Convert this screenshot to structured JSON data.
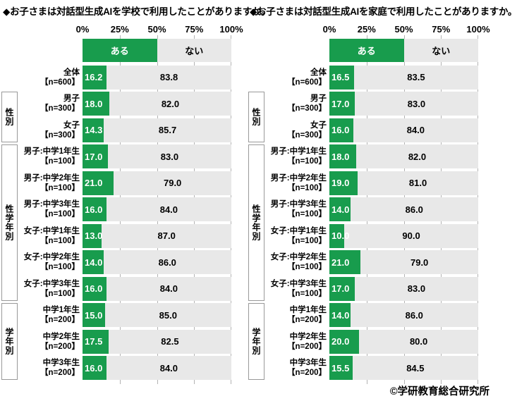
{
  "footer": "©学研教育総合研究所",
  "colors": {
    "bar_yes": "#189c4d",
    "bar_no": "#e8e8e8",
    "value_on_yes": "#ffffff",
    "value_on_no": "#000000",
    "gridline": "#b3b3b3",
    "group_box_border": "#999999"
  },
  "chart_data": [
    {
      "type": "bar",
      "orientation": "horizontal",
      "stacked": true,
      "title": "◆お子さまは対話型生成AIを学校で利用したことがありますか。",
      "x_ticks": [
        "0%",
        "25%",
        "50%",
        "75%",
        "100%"
      ],
      "xlim": [
        0,
        100
      ],
      "legend": [
        "ある",
        "ない"
      ],
      "legend_position": "top",
      "grid": "vertical ticks at 25/50/75/100 shown in row gaps",
      "groups": [
        {
          "label": "",
          "rows": [
            {
              "category": "全体",
              "n": "【n=600】",
              "yes": 16.2,
              "no": 83.8
            }
          ]
        },
        {
          "label": "性別",
          "rows": [
            {
              "category": "男子",
              "n": "【n=300】",
              "yes": 18.0,
              "no": 82.0
            },
            {
              "category": "女子",
              "n": "【n=300】",
              "yes": 14.3,
              "no": 85.7
            }
          ]
        },
        {
          "label": "性学年別",
          "rows": [
            {
              "category": "男子:中学1年生",
              "n": "【n=100】",
              "yes": 17.0,
              "no": 83.0
            },
            {
              "category": "男子:中学2年生",
              "n": "【n=100】",
              "yes": 21.0,
              "no": 79.0
            },
            {
              "category": "男子:中学3年生",
              "n": "【n=100】",
              "yes": 16.0,
              "no": 84.0
            },
            {
              "category": "女子:中学1年生",
              "n": "【n=100】",
              "yes": 13.0,
              "no": 87.0
            },
            {
              "category": "女子:中学2年生",
              "n": "【n=100】",
              "yes": 14.0,
              "no": 86.0
            },
            {
              "category": "女子:中学3年生",
              "n": "【n=100】",
              "yes": 16.0,
              "no": 84.0
            }
          ]
        },
        {
          "label": "学年別",
          "rows": [
            {
              "category": "中学1年生",
              "n": "【n=200】",
              "yes": 15.0,
              "no": 85.0
            },
            {
              "category": "中学2年生",
              "n": "【n=200】",
              "yes": 17.5,
              "no": 82.5
            },
            {
              "category": "中学3年生",
              "n": "【n=200】",
              "yes": 16.0,
              "no": 84.0
            }
          ]
        }
      ]
    },
    {
      "type": "bar",
      "orientation": "horizontal",
      "stacked": true,
      "title": "◆お子さまは対話型生成AIを家庭で利用したことがありますか。",
      "x_ticks": [
        "0%",
        "25%",
        "50%",
        "75%",
        "100%"
      ],
      "xlim": [
        0,
        100
      ],
      "legend": [
        "ある",
        "ない"
      ],
      "legend_position": "top",
      "grid": "vertical ticks at 25/50/75/100 shown in row gaps",
      "groups": [
        {
          "label": "",
          "rows": [
            {
              "category": "全体",
              "n": "【n=600】",
              "yes": 16.5,
              "no": 83.5
            }
          ]
        },
        {
          "label": "性別",
          "rows": [
            {
              "category": "男子",
              "n": "【n=300】",
              "yes": 17.0,
              "no": 83.0
            },
            {
              "category": "女子",
              "n": "【n=300】",
              "yes": 16.0,
              "no": 84.0
            }
          ]
        },
        {
          "label": "性学年別",
          "rows": [
            {
              "category": "男子:中学1年生",
              "n": "【n=100】",
              "yes": 18.0,
              "no": 82.0
            },
            {
              "category": "男子:中学2年生",
              "n": "【n=100】",
              "yes": 19.0,
              "no": 81.0
            },
            {
              "category": "男子:中学3年生",
              "n": "【n=100】",
              "yes": 14.0,
              "no": 86.0
            },
            {
              "category": "女子:中学1年生",
              "n": "【n=100】",
              "yes": 10.0,
              "no": 90.0
            },
            {
              "category": "女子:中学2年生",
              "n": "【n=100】",
              "yes": 21.0,
              "no": 79.0
            },
            {
              "category": "女子:中学3年生",
              "n": "【n=100】",
              "yes": 17.0,
              "no": 83.0
            }
          ]
        },
        {
          "label": "学年別",
          "rows": [
            {
              "category": "中学1年生",
              "n": "【n=200】",
              "yes": 14.0,
              "no": 86.0
            },
            {
              "category": "中学2年生",
              "n": "【n=200】",
              "yes": 20.0,
              "no": 80.0
            },
            {
              "category": "中学3年生",
              "n": "【n=200】",
              "yes": 15.5,
              "no": 84.5
            }
          ]
        }
      ]
    }
  ]
}
